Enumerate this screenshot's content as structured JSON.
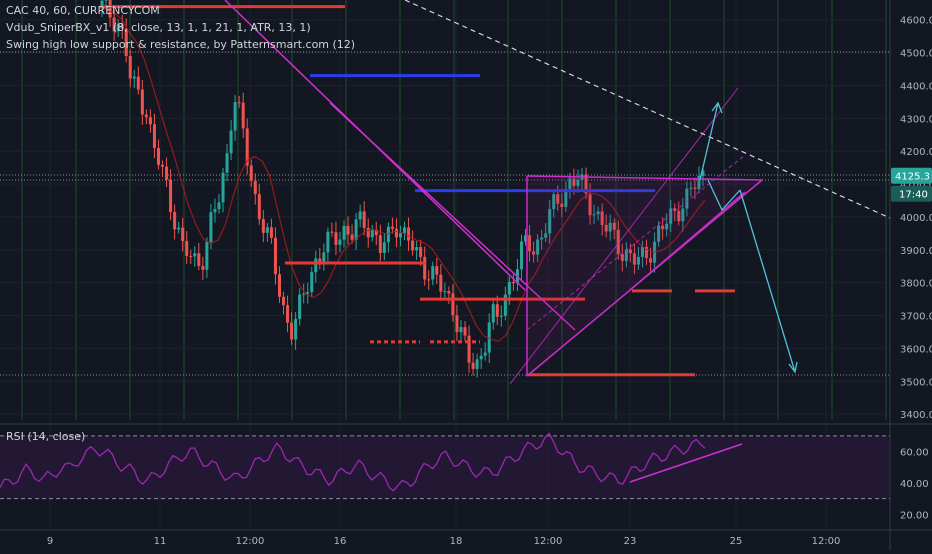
{
  "legend": {
    "symbol": "CAC 40, 60, CURRENCYCOM",
    "indicator_1": "Vdub_SniperBX_v1 (8, close, 13, 1, 1, 21, 1, ATR, 13, 1)",
    "indicator_2": "Swing high low support & resistance, by Patternsmart.com (12)",
    "rsi": "RSI (14, close)"
  },
  "colors": {
    "background": "#131722",
    "grid": "#1e2230",
    "bull": "#26a69a",
    "bear": "#ef5350",
    "support": "#e53935",
    "resistance": "#2b3bf0",
    "trendline": "#d02fd0",
    "projection": "#4fc3d8",
    "rsi_line": "#9c27b0",
    "rsi_band": "#2a1a3a",
    "price_badge": "#26a69a"
  },
  "chart_data": {
    "type": "candlestick",
    "price_axis": {
      "ticks": [
        "4600.0",
        "4500.0",
        "4400.0",
        "4300.0",
        "4200.0",
        "4100.0",
        "4000.0",
        "3900.0",
        "3800.0",
        "3700.0",
        "3600.0",
        "3500.0",
        "3400.0"
      ],
      "range": [
        3370,
        4660
      ]
    },
    "time_axis": {
      "ticks": [
        "9",
        "11",
        "12:00",
        "16",
        "18",
        "12:00",
        "23",
        "25",
        "12:00"
      ]
    },
    "last_price": "4125.3",
    "countdown": "17:40",
    "close_path": [
      4640,
      4620,
      4600,
      4540,
      4400,
      4380,
      4330,
      4210,
      4150,
      4080,
      3990,
      3900,
      3880,
      3860,
      3890,
      3990,
      4060,
      4180,
      4380,
      4280,
      4150,
      4050,
      3980,
      3910,
      3800,
      3700,
      3650,
      3720,
      3800,
      3860,
      3890,
      3920,
      3950,
      3960,
      3940,
      3980,
      3990,
      3950,
      3900,
      3930,
      3990,
      3950,
      3920,
      3880,
      3850,
      3830,
      3790,
      3760,
      3720,
      3650,
      3560,
      3540,
      3600,
      3700,
      3680,
      3760,
      3820,
      3880,
      3920,
      3900,
      3950,
      4000,
      4040,
      4070,
      4120,
      4110,
      4060,
      4030,
      3990,
      3960,
      3930,
      3900,
      3880,
      3860,
      3880,
      3910,
      3950,
      3980,
      4010,
      4040,
      4060,
      4100,
      4125
    ],
    "support_levels": [
      "3860",
      "3750",
      "3620",
      "3520"
    ],
    "resistance_levels": [
      "4430",
      "4080"
    ],
    "rsi": {
      "axis_ticks": [
        "60.00",
        "40.00",
        "20.00"
      ],
      "bands": [
        70,
        30
      ],
      "values": [
        37,
        40,
        44,
        48,
        46,
        42,
        45,
        50,
        49,
        55,
        58,
        62,
        60,
        55,
        51,
        48,
        44,
        41,
        45,
        50,
        54,
        58,
        60,
        56,
        52,
        49,
        45,
        42,
        46,
        50,
        55,
        59,
        62,
        58,
        53,
        50,
        47,
        44,
        42,
        45,
        49,
        52,
        48,
        45,
        42,
        39,
        37,
        40,
        45,
        50,
        54,
        57,
        55,
        52,
        49,
        47,
        46,
        48,
        52,
        56,
        60,
        63,
        66,
        68,
        64,
        58,
        53,
        49,
        47,
        45,
        43,
        42,
        44,
        48,
        52,
        55,
        57,
        59,
        61,
        63,
        64,
        66
      ]
    }
  }
}
